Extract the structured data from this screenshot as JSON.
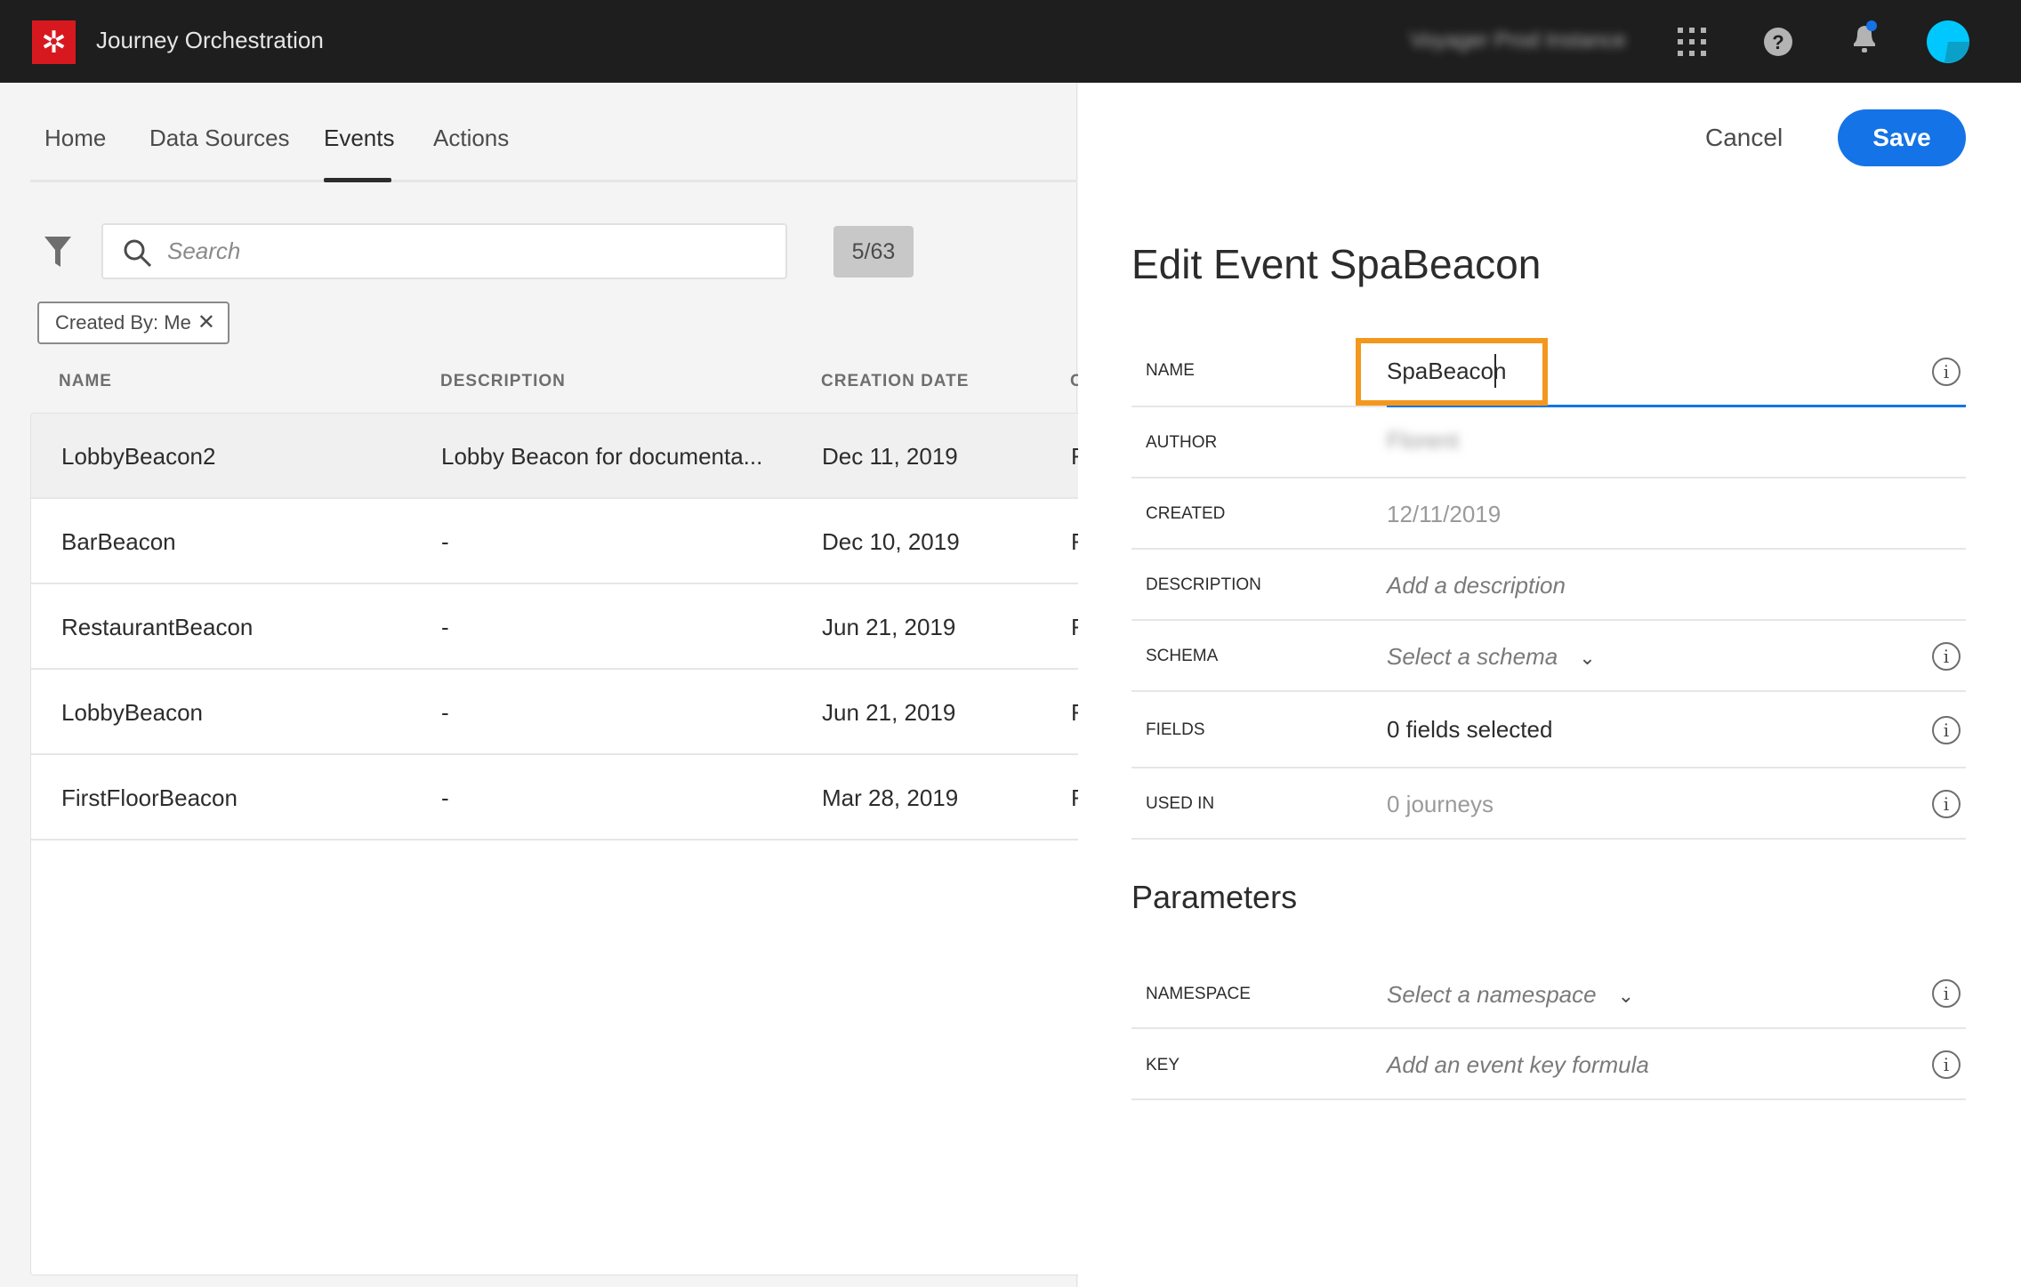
{
  "header": {
    "app_title": "Journey Orchestration",
    "instance": "Voyager Prod Instance"
  },
  "nav": {
    "tabs": [
      {
        "label": "Home"
      },
      {
        "label": "Data Sources"
      },
      {
        "label": "Events",
        "active": true
      },
      {
        "label": "Actions"
      }
    ]
  },
  "search": {
    "placeholder": "Search",
    "count": "5/63"
  },
  "filter_chip": "Created By: Me",
  "table": {
    "columns": [
      "NAME",
      "DESCRIPTION",
      "CREATION DATE",
      "C"
    ],
    "rows": [
      {
        "name": "LobbyBeacon2",
        "description": "Lobby Beacon for documenta...",
        "date": "Dec 11, 2019",
        "col4": "F"
      },
      {
        "name": "BarBeacon",
        "description": "-",
        "date": "Dec 10, 2019",
        "col4": "F"
      },
      {
        "name": "RestaurantBeacon",
        "description": "-",
        "date": "Jun 21, 2019",
        "col4": "F"
      },
      {
        "name": "LobbyBeacon",
        "description": "-",
        "date": "Jun 21, 2019",
        "col4": "F"
      },
      {
        "name": "FirstFloorBeacon",
        "description": "-",
        "date": "Mar 28, 2019",
        "col4": "F"
      }
    ]
  },
  "panel": {
    "cancel": "Cancel",
    "save": "Save",
    "title": "Edit Event SpaBeacon",
    "fields": {
      "name_label": "NAME",
      "name_value": "SpaBeacon",
      "author_label": "AUTHOR",
      "author_value": "Florent",
      "created_label": "CREATED",
      "created_value": "12/11/2019",
      "description_label": "DESCRIPTION",
      "description_placeholder": "Add a description",
      "schema_label": "SCHEMA",
      "schema_placeholder": "Select a schema",
      "fields_label": "FIELDS",
      "fields_value": "0 fields selected",
      "used_label": "USED IN",
      "used_value": "0 journeys"
    },
    "parameters_title": "Parameters",
    "params": {
      "namespace_label": "NAMESPACE",
      "namespace_placeholder": "Select a namespace",
      "key_label": "KEY",
      "key_placeholder": "Add an event key formula"
    }
  },
  "colors": {
    "accent": "#1473e6",
    "highlight": "#f4981d",
    "topbar": "#1e1e1e",
    "logo": "#d7191f"
  }
}
